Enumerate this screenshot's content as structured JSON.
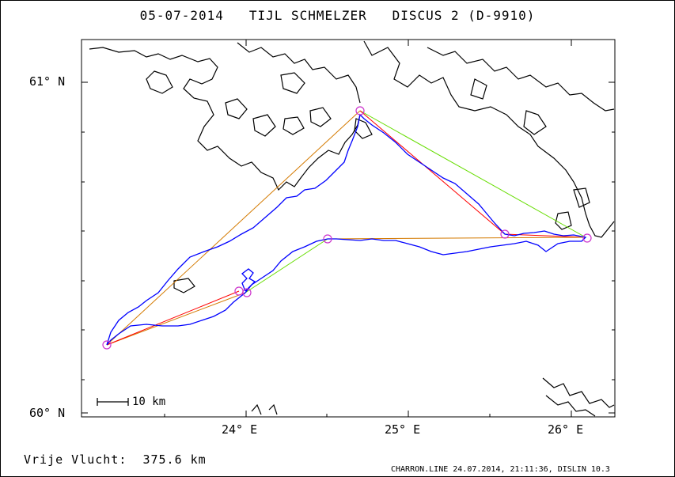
{
  "header": {
    "date": "05-07-2014",
    "pilot": "TIJL SCHMELZER",
    "glider": "DISCUS 2 (D-9910)"
  },
  "axes": {
    "lat_labels": [
      "61° N",
      "60° N"
    ],
    "lon_labels": [
      "24° E",
      "25° E",
      "26° E"
    ]
  },
  "scale_bar": {
    "label": "10 km"
  },
  "footer": {
    "flight_label": "Vrije Vlucht:",
    "distance": "375.6 km"
  },
  "credit": "CHARRON.LINE 24.07.2014, 21:11:36, DISLIN 10.3",
  "colors": {
    "track": "#0000ff",
    "task_leg_orange": "#d47a00",
    "task_leg_red": "#ff0000",
    "task_leg_green": "#66dd00",
    "turnpoint": "#cc33cc",
    "coastline": "#000000"
  },
  "turnpoints": [
    {
      "name": "start",
      "lon": 23.25,
      "lat": 60.21
    },
    {
      "name": "tp1",
      "lon": 24.67,
      "lat": 60.91
    },
    {
      "name": "tp2",
      "lon": 25.58,
      "lat": 60.54
    },
    {
      "name": "tp3",
      "lon": 26.07,
      "lat": 60.53
    },
    {
      "name": "tp4",
      "lon": 24.5,
      "lat": 60.53
    },
    {
      "name": "tp5",
      "lon": 23.97,
      "lat": 60.37
    }
  ]
}
